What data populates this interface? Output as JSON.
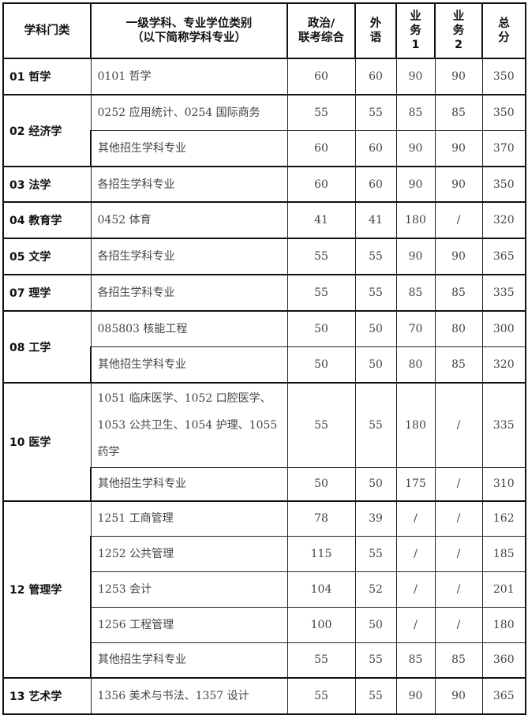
{
  "headers": [
    "学科门类",
    "一级学科、专业学位类别\n（以下简称学科专业）",
    "政治/\n联考综合",
    "外\n语",
    "业\n务\n1",
    "业\n务\n2",
    "总\n分"
  ],
  "groups": [
    {
      "category": "01 哲学",
      "rows": [
        {
          "subject": "0101 哲学",
          "politics": "60",
          "language": "60",
          "course1": "90",
          "course2": "90",
          "total": "350"
        }
      ]
    },
    {
      "category": "02 经济学",
      "rows": [
        {
          "subject": "0252 应用统计、0254 国际商务",
          "politics": "55",
          "language": "55",
          "course1": "85",
          "course2": "85",
          "total": "350"
        },
        {
          "subject": "其他招生学科专业",
          "politics": "60",
          "language": "60",
          "course1": "90",
          "course2": "90",
          "total": "370"
        }
      ]
    },
    {
      "category": "03 法学",
      "rows": [
        {
          "subject": "各招生学科专业",
          "politics": "60",
          "language": "60",
          "course1": "90",
          "course2": "90",
          "total": "350"
        }
      ]
    },
    {
      "category": "04 教育学",
      "rows": [
        {
          "subject": "0452 体育",
          "politics": "41",
          "language": "41",
          "course1": "180",
          "course2": "/",
          "total": "320"
        }
      ]
    },
    {
      "category": "05 文学",
      "rows": [
        {
          "subject": "各招生学科专业",
          "politics": "55",
          "language": "55",
          "course1": "90",
          "course2": "90",
          "total": "365"
        }
      ]
    },
    {
      "category": "07 理学",
      "rows": [
        {
          "subject": "各招生学科专业",
          "politics": "55",
          "language": "55",
          "course1": "85",
          "course2": "85",
          "total": "335"
        }
      ]
    },
    {
      "category": "08 工学",
      "rows": [
        {
          "subject": "085803 核能工程",
          "politics": "50",
          "language": "50",
          "course1": "70",
          "course2": "80",
          "total": "300"
        },
        {
          "subject": "其他招生学科专业",
          "politics": "50",
          "language": "50",
          "course1": "80",
          "course2": "85",
          "total": "320"
        }
      ]
    },
    {
      "category": "10 医学",
      "rows": [
        {
          "subject": "1051 临床医学、1052 口腔医学、1053 公共卫生、1054 护理、1055 药学",
          "politics": "55",
          "language": "55",
          "course1": "180",
          "course2": "/",
          "total": "335"
        },
        {
          "subject": "其他招生学科专业",
          "politics": "50",
          "language": "50",
          "course1": "175",
          "course2": "/",
          "total": "310"
        }
      ]
    },
    {
      "category": "12 管理学",
      "rows": [
        {
          "subject": "1251 工商管理",
          "politics": "78",
          "language": "39",
          "course1": "/",
          "course2": "/",
          "total": "162"
        },
        {
          "subject": "1252 公共管理",
          "politics": "115",
          "language": "55",
          "course1": "/",
          "course2": "/",
          "total": "185"
        },
        {
          "subject": "1253 会计",
          "politics": "104",
          "language": "52",
          "course1": "/",
          "course2": "/",
          "total": "201"
        },
        {
          "subject": "1256 工程管理",
          "politics": "100",
          "language": "50",
          "course1": "/",
          "course2": "/",
          "total": "180"
        },
        {
          "subject": "其他招生学科专业",
          "politics": "55",
          "language": "55",
          "course1": "85",
          "course2": "85",
          "total": "360"
        }
      ]
    },
    {
      "category": "13 艺术学",
      "rows": [
        {
          "subject": "1356 美术与书法、1357 设计",
          "politics": "55",
          "language": "55",
          "course1": "90",
          "course2": "90",
          "total": "365"
        }
      ]
    }
  ]
}
